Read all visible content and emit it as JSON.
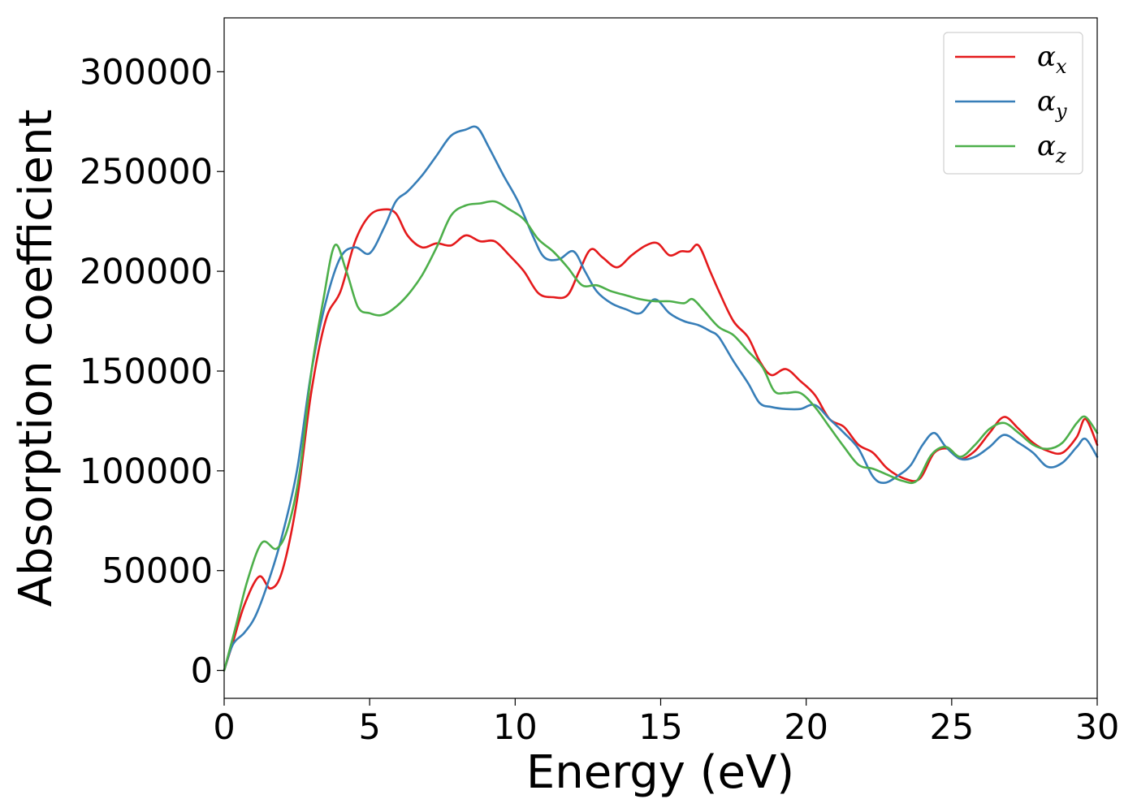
{
  "chart_data": {
    "type": "line",
    "xlabel": "Energy (eV)",
    "ylabel": "Absorption coefficient",
    "xlim": [
      0,
      30
    ],
    "ylim": [
      -14000,
      327000
    ],
    "xticks": [
      0,
      5,
      10,
      15,
      20,
      25,
      30
    ],
    "yticks": [
      0,
      50000,
      100000,
      150000,
      200000,
      250000,
      300000
    ],
    "grid": false,
    "legend_position": "top-right",
    "series": [
      {
        "name": "α_x",
        "symbol": "α",
        "subscript": "x",
        "color": "#e41a1c",
        "x": [
          0,
          0.3,
          0.7,
          1.2,
          1.6,
          2.0,
          2.5,
          3.0,
          3.5,
          4.0,
          4.5,
          5.0,
          5.5,
          5.9,
          6.3,
          6.8,
          7.3,
          7.8,
          8.3,
          8.8,
          9.3,
          9.8,
          10.3,
          10.8,
          11.3,
          11.8,
          12.2,
          12.6,
          13.0,
          13.5,
          14.0,
          14.5,
          14.9,
          15.3,
          15.7,
          16.0,
          16.3,
          16.7,
          17.0,
          17.5,
          18.0,
          18.4,
          18.8,
          19.3,
          19.8,
          20.3,
          20.8,
          21.3,
          21.8,
          22.3,
          22.8,
          23.4,
          23.9,
          24.4,
          24.9,
          25.3,
          25.8,
          26.3,
          26.8,
          27.3,
          27.8,
          28.3,
          28.8,
          29.3,
          29.6,
          30.0
        ],
        "y": [
          0,
          14000,
          33000,
          47000,
          41000,
          50000,
          85000,
          140000,
          176000,
          190000,
          215000,
          228000,
          231000,
          229000,
          218000,
          212000,
          214000,
          213000,
          218000,
          215000,
          215000,
          208000,
          200000,
          189000,
          187000,
          188000,
          200000,
          211000,
          207000,
          202000,
          208000,
          213000,
          214000,
          208000,
          210000,
          210000,
          213000,
          200000,
          190000,
          175000,
          167000,
          155000,
          148000,
          151000,
          145000,
          138000,
          126000,
          122000,
          113000,
          109000,
          101000,
          96000,
          96000,
          109000,
          111000,
          106000,
          110000,
          119000,
          127000,
          121000,
          114000,
          110000,
          109000,
          117000,
          126000,
          113000
        ]
      },
      {
        "name": "α_y",
        "symbol": "α",
        "subscript": "y",
        "color": "#377eb8",
        "x": [
          0,
          0.3,
          0.7,
          1.1,
          1.6,
          2.0,
          2.5,
          3.0,
          3.5,
          4.0,
          4.5,
          5.0,
          5.5,
          5.9,
          6.3,
          6.8,
          7.3,
          7.8,
          8.3,
          8.7,
          9.1,
          9.6,
          10.1,
          10.6,
          11.0,
          11.5,
          12.0,
          12.4,
          12.8,
          13.3,
          13.8,
          14.3,
          14.8,
          15.3,
          15.8,
          16.3,
          16.7,
          17.0,
          17.5,
          18.0,
          18.4,
          18.8,
          19.3,
          19.8,
          20.3,
          20.8,
          21.3,
          21.8,
          22.3,
          22.7,
          23.2,
          23.6,
          24.0,
          24.4,
          24.8,
          25.3,
          25.8,
          26.3,
          26.8,
          27.3,
          27.8,
          28.3,
          28.8,
          29.3,
          29.6,
          30.0
        ],
        "y": [
          0,
          13000,
          19000,
          28000,
          48000,
          68000,
          100000,
          150000,
          185000,
          207000,
          212000,
          209000,
          222000,
          235000,
          240000,
          248000,
          258000,
          268000,
          271000,
          272000,
          262000,
          248000,
          235000,
          218000,
          207000,
          206000,
          210000,
          200000,
          190000,
          184000,
          181000,
          179000,
          186000,
          179000,
          175000,
          173000,
          170000,
          167000,
          155000,
          144000,
          134000,
          132000,
          131000,
          131000,
          133000,
          126000,
          119000,
          111000,
          97000,
          94000,
          98000,
          103000,
          113000,
          119000,
          112000,
          106000,
          107000,
          112000,
          118000,
          114000,
          109000,
          102000,
          104000,
          112000,
          116000,
          107000
        ]
      },
      {
        "name": "α_z",
        "symbol": "α",
        "subscript": "z",
        "color": "#4daf4a",
        "x": [
          0,
          0.4,
          0.8,
          1.3,
          1.8,
          2.2,
          2.6,
          3.0,
          3.4,
          3.8,
          4.2,
          4.6,
          5.0,
          5.4,
          5.8,
          6.3,
          6.8,
          7.3,
          7.8,
          8.3,
          8.8,
          9.3,
          9.8,
          10.3,
          10.8,
          11.3,
          11.8,
          12.3,
          12.8,
          13.3,
          13.8,
          14.3,
          14.8,
          15.3,
          15.8,
          16.1,
          16.5,
          17.0,
          17.5,
          18.0,
          18.5,
          18.9,
          19.3,
          19.8,
          20.3,
          20.8,
          21.3,
          21.8,
          22.3,
          22.8,
          23.3,
          23.8,
          24.3,
          24.8,
          25.3,
          25.8,
          26.3,
          26.8,
          27.3,
          27.8,
          28.3,
          28.8,
          29.3,
          29.6,
          30.0
        ],
        "y": [
          0,
          22000,
          45000,
          64000,
          61000,
          72000,
          100000,
          150000,
          185000,
          213000,
          200000,
          182000,
          179000,
          178000,
          181000,
          188000,
          198000,
          212000,
          228000,
          233000,
          234000,
          235000,
          231000,
          226000,
          216000,
          210000,
          202000,
          193000,
          193000,
          190000,
          188000,
          186000,
          185000,
          185000,
          184000,
          186000,
          180000,
          172000,
          168000,
          160000,
          152000,
          140000,
          139000,
          139000,
          132000,
          122000,
          112000,
          103000,
          101000,
          98000,
          95000,
          95000,
          108000,
          112000,
          107000,
          113000,
          121000,
          124000,
          119000,
          113000,
          111000,
          114000,
          124000,
          127000,
          119000
        ]
      }
    ]
  }
}
